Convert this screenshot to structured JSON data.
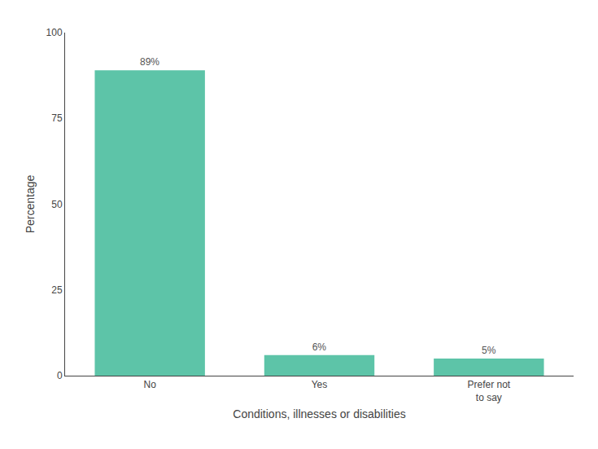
{
  "chart_data": {
    "type": "bar",
    "categories": [
      "No",
      "Yes",
      "Prefer not\nto say"
    ],
    "values": [
      89,
      6,
      5
    ],
    "value_labels": [
      "89%",
      "6%",
      "5%"
    ],
    "color": "#5DC4A8",
    "xlabel": "Conditions, illnesses or disabilities",
    "ylabel": "Percentage",
    "ylim": [
      0,
      100
    ],
    "yticks": [
      0,
      25,
      50,
      75,
      100
    ],
    "grid": false
  }
}
